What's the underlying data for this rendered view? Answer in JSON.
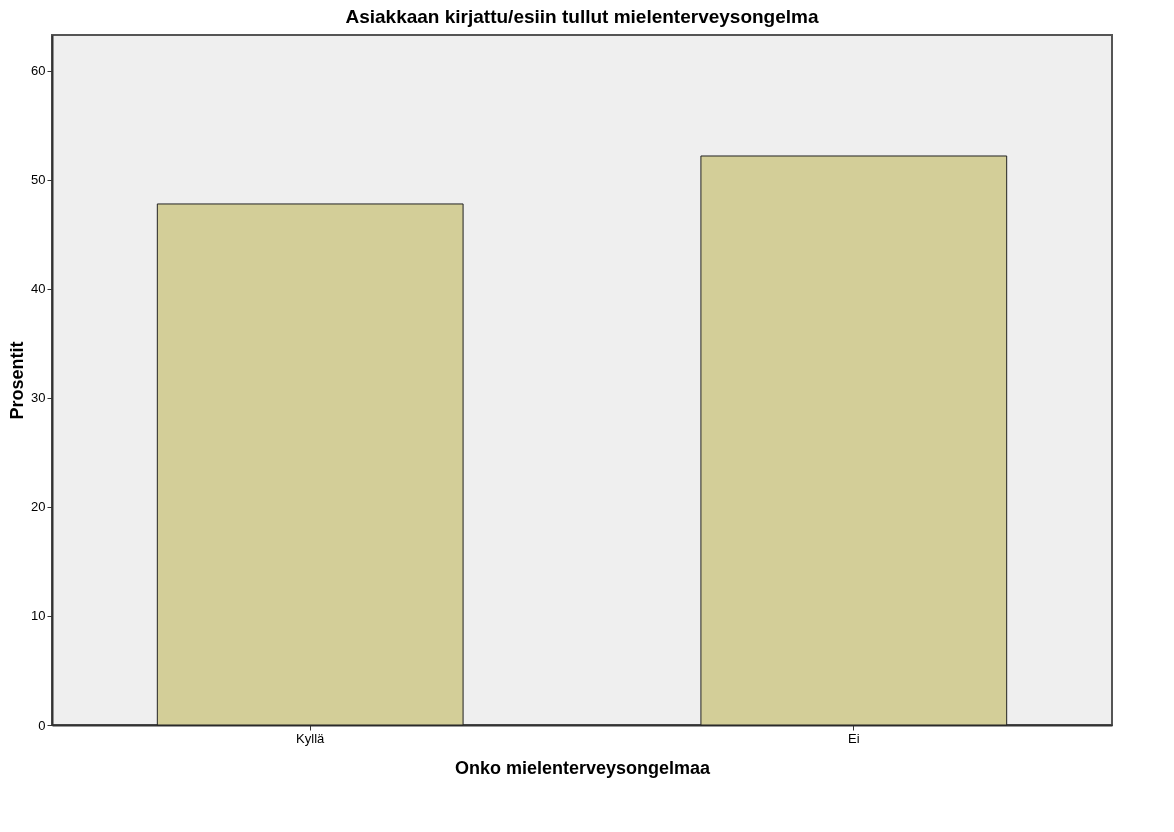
{
  "chart_data": {
    "type": "bar",
    "title": "Asiakkaan kirjattu/esiin tullut mielenterveysongelma",
    "xlabel": "Onko mielenterveysongelmaa",
    "ylabel": "Prosentit",
    "categories": [
      "Kyllä",
      "Ei"
    ],
    "values": [
      47.8,
      52.2
    ],
    "color": "#d3ce98",
    "ylim": [
      0,
      63.3
    ],
    "yticks": [
      0,
      10,
      20,
      30,
      40,
      50,
      60
    ],
    "grid": false
  }
}
